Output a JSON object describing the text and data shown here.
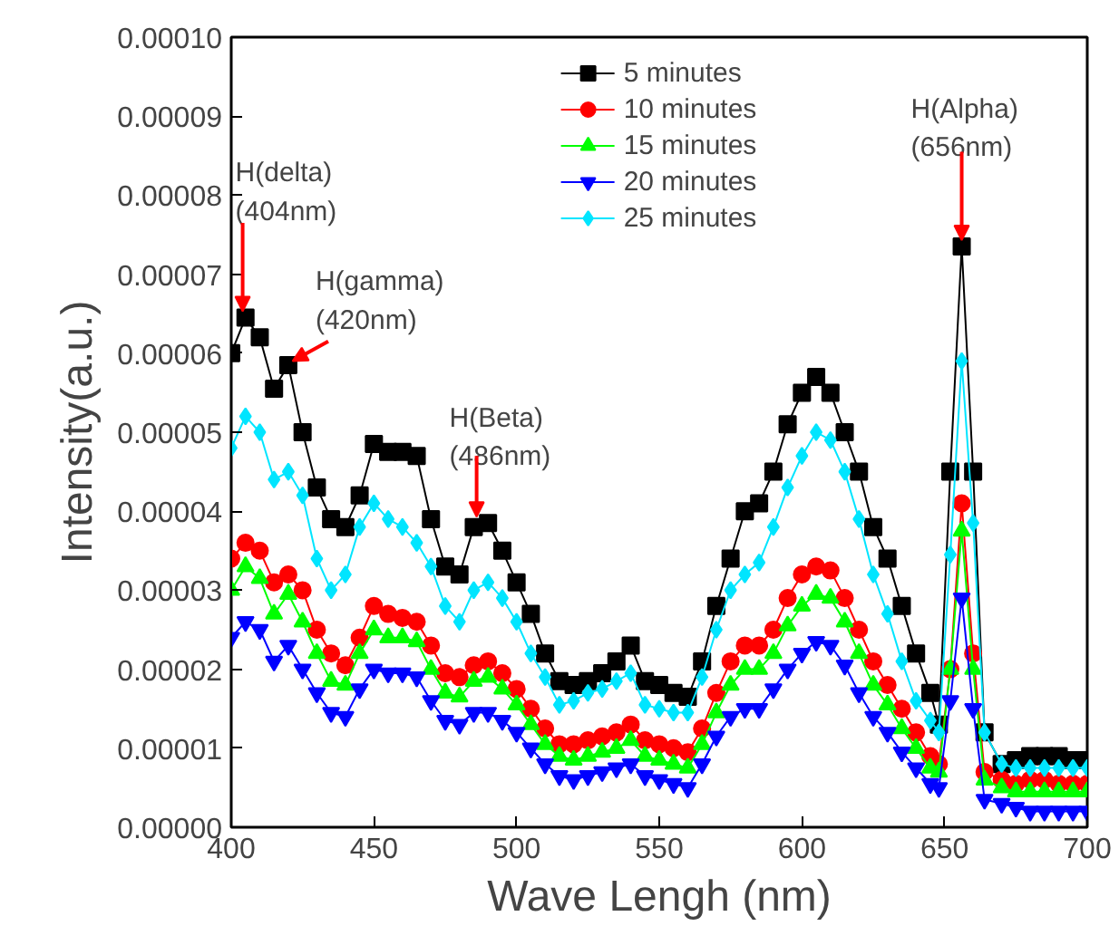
{
  "chart_data": {
    "type": "line",
    "xlabel": "Wave Lengh (nm)",
    "ylabel": "Intensity(a.u.)",
    "x": [
      400,
      405,
      410,
      415,
      420,
      425,
      430,
      435,
      440,
      445,
      450,
      455,
      460,
      465,
      470,
      475,
      480,
      485,
      490,
      495,
      500,
      505,
      510,
      515,
      520,
      525,
      530,
      535,
      540,
      545,
      550,
      555,
      560,
      565,
      570,
      575,
      580,
      585,
      590,
      595,
      600,
      605,
      610,
      615,
      620,
      625,
      630,
      635,
      640,
      645,
      648,
      652,
      656,
      660,
      664,
      670,
      675,
      680,
      685,
      690,
      695,
      700
    ],
    "xlim": [
      400,
      700
    ],
    "xticks": [
      400,
      450,
      500,
      550,
      600,
      650,
      700
    ],
    "ylim": [
      0,
      0.0001
    ],
    "yticks": [
      {
        "value": 0,
        "label": "0.00000"
      },
      {
        "value": 1e-05,
        "label": "0.00001"
      },
      {
        "value": 2e-05,
        "label": "0.00002"
      },
      {
        "value": 3e-05,
        "label": "0.00003"
      },
      {
        "value": 4e-05,
        "label": "0.00004"
      },
      {
        "value": 5e-05,
        "label": "0.00005"
      },
      {
        "value": 6e-05,
        "label": "0.00006"
      },
      {
        "value": 7e-05,
        "label": "0.00007"
      },
      {
        "value": 8e-05,
        "label": "0.00008"
      },
      {
        "value": 9e-05,
        "label": "0.00009"
      },
      {
        "value": 0.0001,
        "label": "0.00010"
      }
    ],
    "grid": false,
    "legend": "top",
    "line_style": "solid",
    "series": [
      {
        "name": "5 minutes",
        "color": "#000000",
        "marker": "square",
        "values": [
          6e-05,
          6.45e-05,
          6.2e-05,
          5.55e-05,
          5.85e-05,
          5e-05,
          4.3e-05,
          3.9e-05,
          3.8e-05,
          4.2e-05,
          4.85e-05,
          4.75e-05,
          4.75e-05,
          4.7e-05,
          3.9e-05,
          3.3e-05,
          3.2e-05,
          3.8e-05,
          3.85e-05,
          3.5e-05,
          3.1e-05,
          2.7e-05,
          2.2e-05,
          1.85e-05,
          1.8e-05,
          1.85e-05,
          1.95e-05,
          2.1e-05,
          2.3e-05,
          1.85e-05,
          1.8e-05,
          1.7e-05,
          1.65e-05,
          2.1e-05,
          2.8e-05,
          3.4e-05,
          4e-05,
          4.1e-05,
          4.5e-05,
          5.1e-05,
          5.5e-05,
          5.7e-05,
          5.5e-05,
          5e-05,
          4.5e-05,
          3.8e-05,
          3.4e-05,
          2.8e-05,
          2.2e-05,
          1.7e-05,
          1.3e-05,
          4.5e-05,
          7.35e-05,
          4.5e-05,
          1.2e-05,
          8e-06,
          8.5e-06,
          9e-06,
          9e-06,
          9e-06,
          8.5e-06,
          8.5e-06
        ]
      },
      {
        "name": "10 minutes",
        "color": "#ff0000",
        "marker": "circle",
        "values": [
          3.4e-05,
          3.6e-05,
          3.5e-05,
          3.1e-05,
          3.2e-05,
          3e-05,
          2.5e-05,
          2.2e-05,
          2.05e-05,
          2.4e-05,
          2.8e-05,
          2.7e-05,
          2.65e-05,
          2.6e-05,
          2.3e-05,
          1.95e-05,
          1.9e-05,
          2.05e-05,
          2.1e-05,
          1.95e-05,
          1.75e-05,
          1.5e-05,
          1.25e-05,
          1.05e-05,
          1.05e-05,
          1.1e-05,
          1.15e-05,
          1.2e-05,
          1.3e-05,
          1.1e-05,
          1.05e-05,
          1e-05,
          9.5e-06,
          1.25e-05,
          1.7e-05,
          2.1e-05,
          2.3e-05,
          2.3e-05,
          2.5e-05,
          2.9e-05,
          3.2e-05,
          3.3e-05,
          3.25e-05,
          2.9e-05,
          2.5e-05,
          2.1e-05,
          1.8e-05,
          1.5e-05,
          1.2e-05,
          9e-06,
          8e-06,
          2e-05,
          4.1e-05,
          2.2e-05,
          7e-06,
          6e-06,
          5.5e-06,
          6e-06,
          6e-06,
          5.5e-06,
          5.5e-06,
          5.5e-06
        ]
      },
      {
        "name": "15 minutes",
        "color": "#00ff00",
        "marker": "triangle",
        "values": [
          3e-05,
          3.3e-05,
          3.15e-05,
          2.7e-05,
          2.95e-05,
          2.6e-05,
          2.2e-05,
          1.85e-05,
          1.8e-05,
          2.2e-05,
          2.5e-05,
          2.4e-05,
          2.4e-05,
          2.35e-05,
          2e-05,
          1.7e-05,
          1.65e-05,
          1.85e-05,
          1.9e-05,
          1.75e-05,
          1.55e-05,
          1.3e-05,
          1.05e-05,
          9e-06,
          8.5e-06,
          9e-06,
          9.5e-06,
          1e-05,
          1.1e-05,
          9e-06,
          8.5e-06,
          8e-06,
          7.5e-06,
          1.05e-05,
          1.45e-05,
          1.8e-05,
          2e-05,
          2e-05,
          2.2e-05,
          2.55e-05,
          2.8e-05,
          2.95e-05,
          2.9e-05,
          2.6e-05,
          2.2e-05,
          1.8e-05,
          1.55e-05,
          1.25e-05,
          1e-05,
          7.5e-06,
          7e-06,
          2e-05,
          3.75e-05,
          2e-05,
          6e-06,
          5e-06,
          4.5e-06,
          4.5e-06,
          4.5e-06,
          4.5e-06,
          4.5e-06,
          4.5e-06
        ]
      },
      {
        "name": "20 minutes",
        "color": "#0000ff",
        "marker": "triangle",
        "values": [
          2.4e-05,
          2.6e-05,
          2.5e-05,
          2.1e-05,
          2.3e-05,
          2e-05,
          1.7e-05,
          1.45e-05,
          1.4e-05,
          1.75e-05,
          2e-05,
          1.95e-05,
          1.95e-05,
          1.9e-05,
          1.6e-05,
          1.35e-05,
          1.3e-05,
          1.45e-05,
          1.45e-05,
          1.35e-05,
          1.2e-05,
          1e-05,
          8e-06,
          6.5e-06,
          6e-06,
          6.5e-06,
          7e-06,
          7.5e-06,
          8e-06,
          6.5e-06,
          6e-06,
          5.5e-06,
          5e-06,
          8e-06,
          1.15e-05,
          1.4e-05,
          1.5e-05,
          1.5e-05,
          1.75e-05,
          2e-05,
          2.2e-05,
          2.35e-05,
          2.3e-05,
          2.05e-05,
          1.7e-05,
          1.4e-05,
          1.2e-05,
          9.5e-06,
          7.5e-06,
          5.5e-06,
          5e-06,
          1.6e-05,
          2.9e-05,
          1.5e-05,
          3.5e-06,
          3e-06,
          2.5e-06,
          2e-06,
          2e-06,
          2e-06,
          2e-06,
          2e-06
        ]
      },
      {
        "name": "25 minutes",
        "color": "#00e5ff",
        "marker": "diamond",
        "values": [
          4.8e-05,
          5.2e-05,
          5e-05,
          4.4e-05,
          4.5e-05,
          4.2e-05,
          3.4e-05,
          3e-05,
          3.2e-05,
          3.8e-05,
          4.1e-05,
          3.9e-05,
          3.8e-05,
          3.6e-05,
          3.3e-05,
          2.8e-05,
          2.6e-05,
          3e-05,
          3.1e-05,
          2.9e-05,
          2.6e-05,
          2.2e-05,
          1.9e-05,
          1.55e-05,
          1.6e-05,
          1.7e-05,
          1.75e-05,
          1.85e-05,
          1.95e-05,
          1.55e-05,
          1.5e-05,
          1.45e-05,
          1.45e-05,
          1.9e-05,
          2.5e-05,
          3e-05,
          3.2e-05,
          3.35e-05,
          3.8e-05,
          4.3e-05,
          4.7e-05,
          5e-05,
          4.9e-05,
          4.5e-05,
          3.9e-05,
          3.2e-05,
          2.7e-05,
          2.1e-05,
          1.6e-05,
          1.35e-05,
          1.2e-05,
          3.45e-05,
          5.9e-05,
          3.85e-05,
          1.2e-05,
          8e-06,
          7.5e-06,
          7.5e-06,
          7.5e-06,
          7.5e-06,
          7.5e-06,
          7.5e-06
        ]
      }
    ],
    "annotations": [
      {
        "text": "H(delta)\n(404nm)",
        "x": 404,
        "y": 6.45e-05
      },
      {
        "text": "H(gamma)\n(420nm)",
        "x": 420,
        "y": 5.85e-05
      },
      {
        "text": "H(Beta)\n(486nm)",
        "x": 486,
        "y": 3.85e-05
      },
      {
        "text": "H(Alpha)\n(656nm)",
        "x": 656,
        "y": 7.35e-05
      }
    ]
  }
}
